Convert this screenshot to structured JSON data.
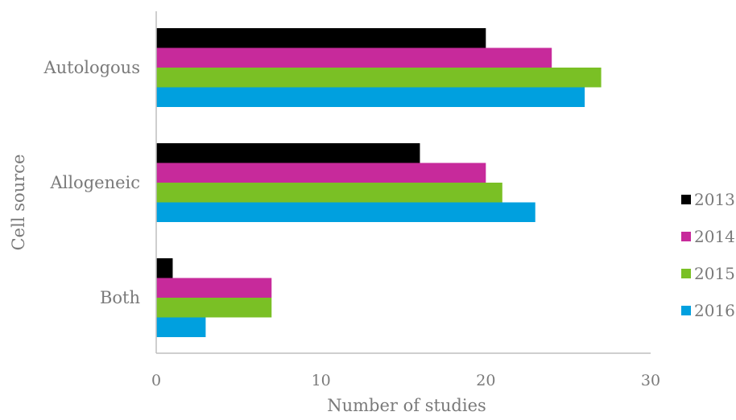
{
  "chart_data": {
    "type": "bar",
    "orientation": "horizontal",
    "categories": [
      "Autologous",
      "Allogeneic",
      "Both"
    ],
    "series": [
      {
        "name": "2013",
        "color": "#000000",
        "values": [
          20,
          16,
          1
        ]
      },
      {
        "name": "2014",
        "color": "#c72a9b",
        "values": [
          24,
          20,
          7
        ]
      },
      {
        "name": "2015",
        "color": "#7ac025",
        "values": [
          27,
          21,
          7
        ]
      },
      {
        "name": "2016",
        "color": "#00a0df",
        "values": [
          26,
          23,
          3
        ]
      }
    ],
    "xlabel": "Number of studies",
    "ylabel": "Cell source",
    "xlim": [
      0,
      30
    ],
    "xticks": [
      "0",
      "10",
      "20",
      "30"
    ],
    "grid": false,
    "legend_position": "right"
  }
}
